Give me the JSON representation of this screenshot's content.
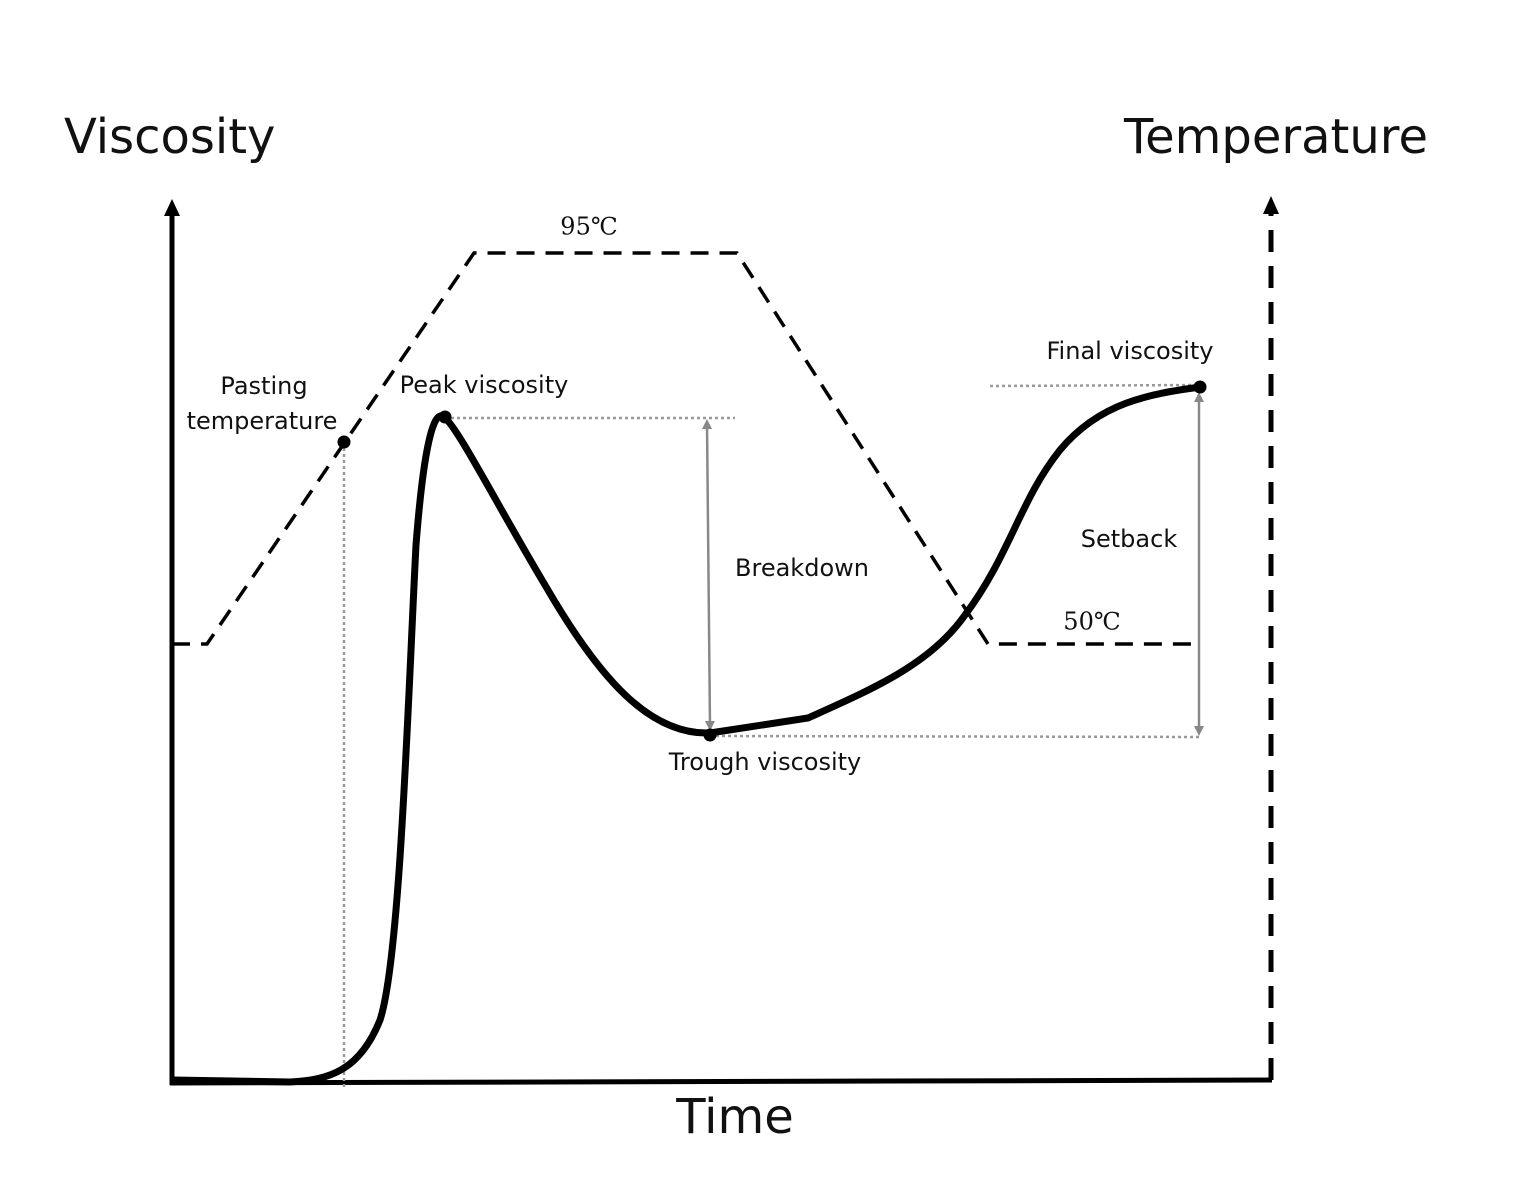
{
  "axes": {
    "y_left": "Viscosity",
    "y_right": "Temperature",
    "x": "Time"
  },
  "labels": {
    "temp_high": "95℃",
    "temp_low": "50℃",
    "pasting_temperature": [
      "Pasting",
      "temperature"
    ],
    "peak_viscosity": "Peak viscosity",
    "final_viscosity": "Final viscosity",
    "breakdown": "Breakdown",
    "setback": "Setback",
    "trough_viscosity": "Trough viscosity"
  }
}
